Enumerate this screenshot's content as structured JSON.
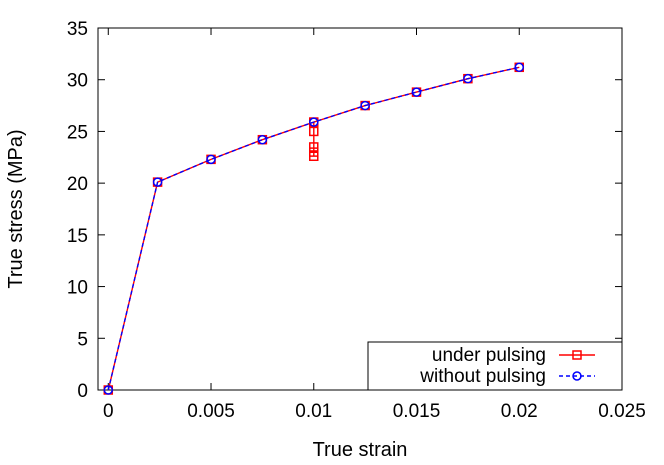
{
  "chart_data": {
    "type": "line",
    "xlabel": "True strain",
    "ylabel": "True stress (MPa)",
    "xlim": [
      -0.0005,
      0.025
    ],
    "ylim": [
      0,
      35
    ],
    "x_ticks": [
      0,
      0.005,
      0.01,
      0.015,
      0.02,
      0.025
    ],
    "x_tick_labels": [
      "0",
      "0.005",
      "0.01",
      "0.015",
      "0.02",
      "0.025"
    ],
    "y_ticks": [
      0,
      5,
      10,
      15,
      20,
      25,
      30,
      35
    ],
    "y_tick_labels": [
      "0",
      "5",
      "10",
      "15",
      "20",
      "25",
      "30",
      "35"
    ],
    "grid": false,
    "legend_position": "bottom-right",
    "series": [
      {
        "name": "under pulsing",
        "color": "#ff0000",
        "marker": "square",
        "line_style": "solid",
        "points": [
          [
            0,
            0
          ],
          [
            0.0024,
            20.1
          ],
          [
            0.005,
            22.3
          ],
          [
            0.0075,
            24.2
          ],
          [
            0.01,
            25.9
          ],
          [
            0.01,
            25.0
          ],
          [
            0.01,
            23.5
          ],
          [
            0.01,
            23.0
          ],
          [
            0.01,
            22.6
          ],
          [
            0.01,
            25.9
          ],
          [
            0.0125,
            27.5
          ],
          [
            0.015,
            28.8
          ],
          [
            0.0175,
            30.1
          ],
          [
            0.02,
            31.2
          ]
        ]
      },
      {
        "name": "without pulsing",
        "color": "#0000ff",
        "marker": "circle",
        "line_style": "dashed",
        "points": [
          [
            0,
            0
          ],
          [
            0.0024,
            20.1
          ],
          [
            0.005,
            22.3
          ],
          [
            0.0075,
            24.2
          ],
          [
            0.01,
            25.9
          ],
          [
            0.0125,
            27.5
          ],
          [
            0.015,
            28.8
          ],
          [
            0.0175,
            30.1
          ],
          [
            0.02,
            31.2
          ]
        ]
      }
    ]
  }
}
